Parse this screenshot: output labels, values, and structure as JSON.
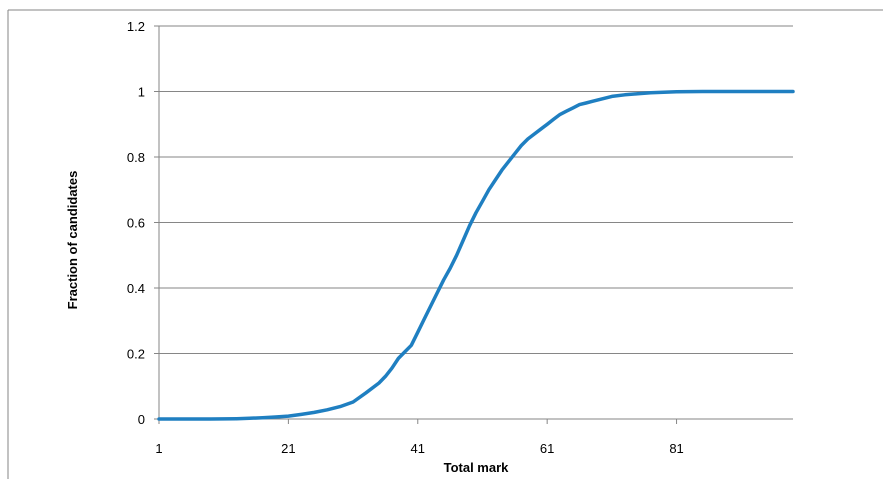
{
  "chart_data": {
    "type": "line",
    "title": "",
    "xlabel": "Total mark",
    "ylabel": "Fraction of candidates",
    "xlim": [
      1,
      99
    ],
    "ylim": [
      0,
      1.2
    ],
    "x_ticks": [
      "1",
      "21",
      "41",
      "61",
      "81"
    ],
    "y_ticks": [
      "0",
      "0.2",
      "0.4",
      "0.6",
      "0.8",
      "1",
      "1.2"
    ],
    "grid": "horizontal",
    "legend": "none",
    "series": [
      {
        "color": "#1F7FC1",
        "x": [
          1,
          5,
          9,
          13,
          15,
          17,
          19,
          21,
          23,
          25,
          27,
          29,
          31,
          33,
          35,
          36,
          37,
          38,
          39,
          40,
          41,
          42,
          43,
          44,
          45,
          46,
          47,
          48,
          49,
          50,
          51,
          52,
          53,
          54,
          55,
          56,
          57,
          58,
          59,
          60,
          61,
          62,
          63,
          64,
          65,
          66,
          67,
          68,
          69,
          70,
          71,
          73,
          75,
          77,
          79,
          81,
          85,
          89,
          93,
          97,
          99
        ],
        "values": [
          0,
          0,
          0,
          0.001,
          0.002,
          0.004,
          0.006,
          0.009,
          0.014,
          0.02,
          0.028,
          0.038,
          0.052,
          0.08,
          0.11,
          0.13,
          0.155,
          0.185,
          0.205,
          0.225,
          0.265,
          0.305,
          0.345,
          0.385,
          0.425,
          0.46,
          0.5,
          0.545,
          0.59,
          0.63,
          0.665,
          0.7,
          0.73,
          0.76,
          0.785,
          0.81,
          0.835,
          0.855,
          0.87,
          0.885,
          0.9,
          0.915,
          0.93,
          0.94,
          0.95,
          0.96,
          0.965,
          0.97,
          0.975,
          0.98,
          0.985,
          0.99,
          0.993,
          0.996,
          0.998,
          0.999,
          1,
          1,
          1,
          1,
          1
        ]
      }
    ]
  }
}
